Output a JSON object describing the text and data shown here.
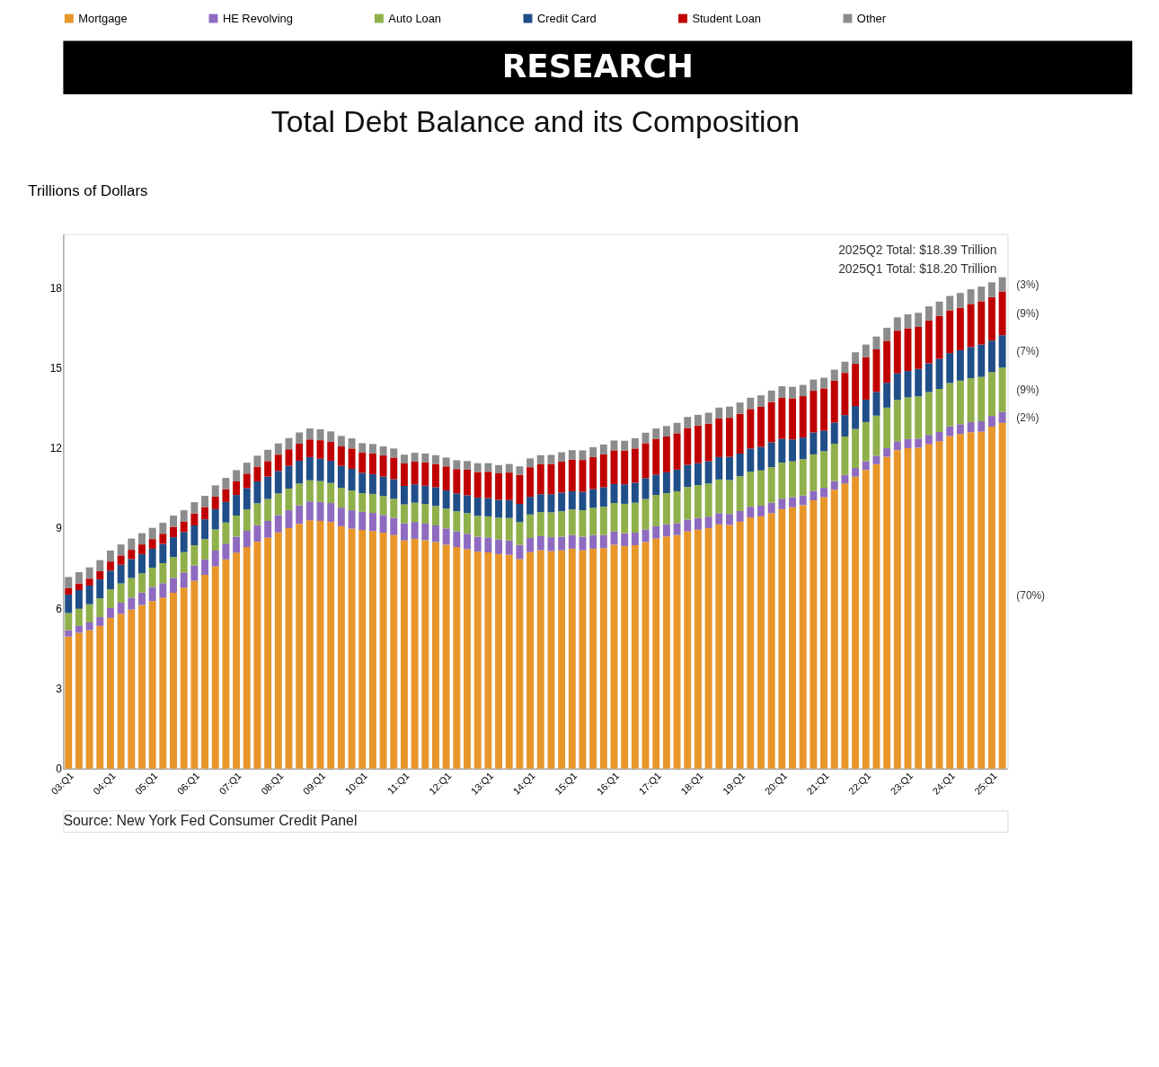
{
  "chart_data": {
    "type": "bar",
    "stacked": true,
    "title": "Total Debt Balance and its Composition",
    "ylabel": "Trillions of Dollars",
    "categories": [
      "03:Q1",
      null,
      null,
      null,
      "04:Q1",
      null,
      null,
      null,
      "05:Q1",
      null,
      null,
      null,
      "06:Q1",
      null,
      null,
      null,
      "07:Q1",
      null,
      null,
      null,
      "08:Q1",
      null,
      null,
      null,
      "09:Q1",
      null,
      null,
      null,
      "10:Q1",
      null,
      null,
      null,
      "11:Q1",
      null,
      null,
      null,
      "12:Q1",
      null,
      null,
      null,
      "13:Q1",
      null,
      null,
      null,
      "14:Q1",
      null,
      null,
      null,
      "15:Q1",
      null,
      null,
      null,
      "16:Q1",
      null,
      null,
      null,
      "17:Q1",
      null,
      null,
      null,
      "18:Q1",
      null,
      null,
      null,
      "19:Q1",
      null,
      null,
      null,
      "20:Q1",
      null,
      null,
      null,
      "21:Q1",
      null,
      null,
      null,
      "22:Q1",
      null,
      null,
      null,
      "23:Q1",
      null,
      null,
      null,
      "24:Q1",
      null,
      null,
      null,
      "25:Q1",
      null
    ],
    "series": [
      {
        "name": "Mortgage",
        "color": "#e8962a",
        "values": [
          4.94,
          5.08,
          5.18,
          5.34,
          5.64,
          5.79,
          5.95,
          6.12,
          6.27,
          6.4,
          6.58,
          6.77,
          7.03,
          7.25,
          7.57,
          7.83,
          8.08,
          8.29,
          8.49,
          8.64,
          8.84,
          9.0,
          9.16,
          9.29,
          9.27,
          9.23,
          9.07,
          8.98,
          8.93,
          8.89,
          8.83,
          8.74,
          8.54,
          8.6,
          8.55,
          8.48,
          8.38,
          8.29,
          8.21,
          8.12,
          8.09,
          8.03,
          8.0,
          7.84,
          8.1,
          8.17,
          8.14,
          8.17,
          8.23,
          8.17,
          8.23,
          8.25,
          8.38,
          8.33,
          8.36,
          8.48,
          8.61,
          8.69,
          8.74,
          8.88,
          8.94,
          9.0,
          9.14,
          9.12,
          9.24,
          9.4,
          9.44,
          9.56,
          9.71,
          9.78,
          9.86,
          10.04,
          10.16,
          10.44,
          10.67,
          10.93,
          11.18,
          11.39,
          11.67,
          11.92,
          11.99,
          12.01,
          12.14,
          12.25,
          12.44,
          12.52,
          12.59,
          12.61,
          12.8,
          12.94
        ]
      },
      {
        "name": "HE Revolving",
        "color": "#8e6bc0",
        "values": [
          0.24,
          0.26,
          0.29,
          0.33,
          0.37,
          0.42,
          0.45,
          0.47,
          0.53,
          0.54,
          0.56,
          0.57,
          0.57,
          0.58,
          0.59,
          0.59,
          0.6,
          0.61,
          0.62,
          0.63,
          0.65,
          0.67,
          0.69,
          0.71,
          0.71,
          0.71,
          0.7,
          0.69,
          0.68,
          0.68,
          0.66,
          0.65,
          0.64,
          0.63,
          0.62,
          0.62,
          0.61,
          0.59,
          0.58,
          0.56,
          0.56,
          0.55,
          0.54,
          0.53,
          0.53,
          0.53,
          0.52,
          0.51,
          0.51,
          0.51,
          0.51,
          0.49,
          0.49,
          0.48,
          0.47,
          0.47,
          0.46,
          0.45,
          0.45,
          0.44,
          0.44,
          0.43,
          0.42,
          0.41,
          0.4,
          0.4,
          0.4,
          0.39,
          0.39,
          0.38,
          0.36,
          0.35,
          0.35,
          0.32,
          0.32,
          0.32,
          0.32,
          0.32,
          0.32,
          0.33,
          0.34,
          0.34,
          0.35,
          0.35,
          0.37,
          0.37,
          0.38,
          0.39,
          0.4,
          0.41
        ]
      },
      {
        "name": "Auto Loan",
        "color": "#8fb04a",
        "values": [
          0.64,
          0.64,
          0.68,
          0.7,
          0.7,
          0.72,
          0.73,
          0.72,
          0.72,
          0.75,
          0.78,
          0.76,
          0.76,
          0.76,
          0.79,
          0.79,
          0.79,
          0.8,
          0.82,
          0.82,
          0.81,
          0.81,
          0.82,
          0.79,
          0.78,
          0.75,
          0.74,
          0.74,
          0.7,
          0.71,
          0.71,
          0.71,
          0.71,
          0.72,
          0.73,
          0.73,
          0.74,
          0.75,
          0.77,
          0.78,
          0.79,
          0.81,
          0.84,
          0.86,
          0.88,
          0.9,
          0.93,
          0.95,
          0.96,
          0.99,
          1.02,
          1.06,
          1.07,
          1.1,
          1.12,
          1.14,
          1.17,
          1.17,
          1.19,
          1.22,
          1.23,
          1.24,
          1.26,
          1.27,
          1.3,
          1.31,
          1.32,
          1.33,
          1.35,
          1.34,
          1.36,
          1.37,
          1.37,
          1.4,
          1.44,
          1.46,
          1.47,
          1.5,
          1.52,
          1.55,
          1.56,
          1.58,
          1.6,
          1.61,
          1.62,
          1.63,
          1.64,
          1.66,
          1.64,
          1.66
        ]
      },
      {
        "name": "Credit Card",
        "color": "#1f4e89",
        "values": [
          0.69,
          0.7,
          0.7,
          0.71,
          0.7,
          0.7,
          0.71,
          0.72,
          0.71,
          0.72,
          0.74,
          0.75,
          0.74,
          0.74,
          0.76,
          0.77,
          0.77,
          0.8,
          0.82,
          0.84,
          0.84,
          0.85,
          0.85,
          0.87,
          0.84,
          0.83,
          0.82,
          0.81,
          0.76,
          0.74,
          0.73,
          0.73,
          0.69,
          0.69,
          0.69,
          0.7,
          0.68,
          0.67,
          0.67,
          0.68,
          0.68,
          0.67,
          0.67,
          0.68,
          0.66,
          0.67,
          0.68,
          0.7,
          0.68,
          0.69,
          0.7,
          0.73,
          0.71,
          0.73,
          0.75,
          0.78,
          0.76,
          0.78,
          0.81,
          0.83,
          0.82,
          0.83,
          0.84,
          0.87,
          0.85,
          0.87,
          0.88,
          0.93,
          0.89,
          0.82,
          0.81,
          0.82,
          0.77,
          0.79,
          0.8,
          0.86,
          0.84,
          0.89,
          0.93,
          0.99,
          0.99,
          1.03,
          1.08,
          1.13,
          1.12,
          1.14,
          1.17,
          1.21,
          1.18,
          1.21
        ]
      },
      {
        "name": "Student Loan",
        "color": "#c00000",
        "values": [
          0.24,
          0.25,
          0.26,
          0.31,
          0.34,
          0.35,
          0.35,
          0.36,
          0.36,
          0.38,
          0.39,
          0.4,
          0.45,
          0.46,
          0.47,
          0.48,
          0.51,
          0.54,
          0.55,
          0.58,
          0.61,
          0.62,
          0.64,
          0.66,
          0.69,
          0.71,
          0.73,
          0.76,
          0.76,
          0.78,
          0.79,
          0.81,
          0.84,
          0.85,
          0.87,
          0.87,
          0.9,
          0.91,
          0.96,
          0.96,
          0.99,
          0.99,
          1.03,
          1.08,
          1.11,
          1.12,
          1.13,
          1.16,
          1.19,
          1.19,
          1.2,
          1.23,
          1.26,
          1.26,
          1.28,
          1.31,
          1.34,
          1.34,
          1.36,
          1.38,
          1.41,
          1.41,
          1.44,
          1.46,
          1.49,
          1.48,
          1.5,
          1.51,
          1.54,
          1.54,
          1.55,
          1.56,
          1.58,
          1.57,
          1.58,
          1.58,
          1.59,
          1.59,
          1.57,
          1.6,
          1.6,
          1.57,
          1.6,
          1.6,
          1.6,
          1.59,
          1.61,
          1.62,
          1.63,
          1.64
        ]
      },
      {
        "name": "Other",
        "color": "#8c8c8c",
        "values": [
          0.42,
          0.42,
          0.42,
          0.41,
          0.41,
          0.41,
          0.42,
          0.42,
          0.42,
          0.41,
          0.42,
          0.42,
          0.42,
          0.42,
          0.42,
          0.42,
          0.42,
          0.41,
          0.41,
          0.42,
          0.42,
          0.42,
          0.42,
          0.41,
          0.41,
          0.39,
          0.39,
          0.38,
          0.35,
          0.35,
          0.34,
          0.34,
          0.33,
          0.33,
          0.33,
          0.33,
          0.33,
          0.33,
          0.32,
          0.33,
          0.32,
          0.31,
          0.32,
          0.32,
          0.33,
          0.34,
          0.34,
          0.35,
          0.35,
          0.36,
          0.37,
          0.37,
          0.37,
          0.37,
          0.38,
          0.39,
          0.39,
          0.39,
          0.39,
          0.41,
          0.4,
          0.41,
          0.41,
          0.42,
          0.42,
          0.42,
          0.43,
          0.43,
          0.43,
          0.43,
          0.42,
          0.42,
          0.4,
          0.41,
          0.42,
          0.43,
          0.47,
          0.48,
          0.49,
          0.5,
          0.52,
          0.53,
          0.53,
          0.54,
          0.54,
          0.55,
          0.55,
          0.55,
          0.55,
          0.53
        ]
      }
    ],
    "ylim": [
      0,
      20
    ],
    "yticks": [
      0,
      3,
      6,
      9,
      12,
      15,
      18
    ],
    "grid": false,
    "legend": "top",
    "annotations": [
      "RESEARCH",
      "2025Q2 Total: $18.39 Trillion",
      "2025Q1 Total: $18.20 Trillion",
      "(3%)",
      "(9%)",
      "(7%)",
      "(9%)",
      "(2%)",
      "(70%)",
      "Source: New York Fed Consumer Credit Panel"
    ]
  }
}
